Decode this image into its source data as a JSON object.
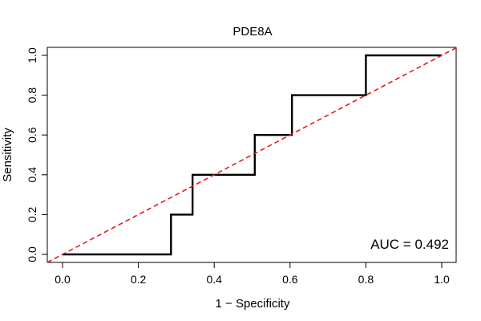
{
  "chart_data": {
    "type": "line",
    "title": "PDE8A",
    "xlabel": "1 − Specificity",
    "ylabel": "Sensitivity",
    "xlim": [
      0,
      1
    ],
    "ylim": [
      0,
      1
    ],
    "x_ticks": [
      "0.0",
      "0.2",
      "0.4",
      "0.6",
      "0.8",
      "1.0"
    ],
    "y_ticks": [
      "0.0",
      "0.2",
      "0.4",
      "0.6",
      "0.8",
      "1.0"
    ],
    "grid": false,
    "legend": "none",
    "annotation": "AUC = 0.492",
    "series": [
      {
        "style": "step",
        "color": "#000000",
        "x": [
          0.0,
          0.286,
          0.286,
          0.343,
          0.343,
          0.507,
          0.507,
          0.605,
          0.605,
          0.8,
          0.8,
          1.0
        ],
        "y": [
          0.0,
          0.0,
          0.2,
          0.2,
          0.4,
          0.4,
          0.6,
          0.6,
          0.8,
          0.8,
          1.0,
          1.0
        ]
      },
      {
        "style": "dashed",
        "color": "#e31a1c",
        "x": [
          0,
          1
        ],
        "y": [
          0,
          1
        ]
      }
    ]
  }
}
